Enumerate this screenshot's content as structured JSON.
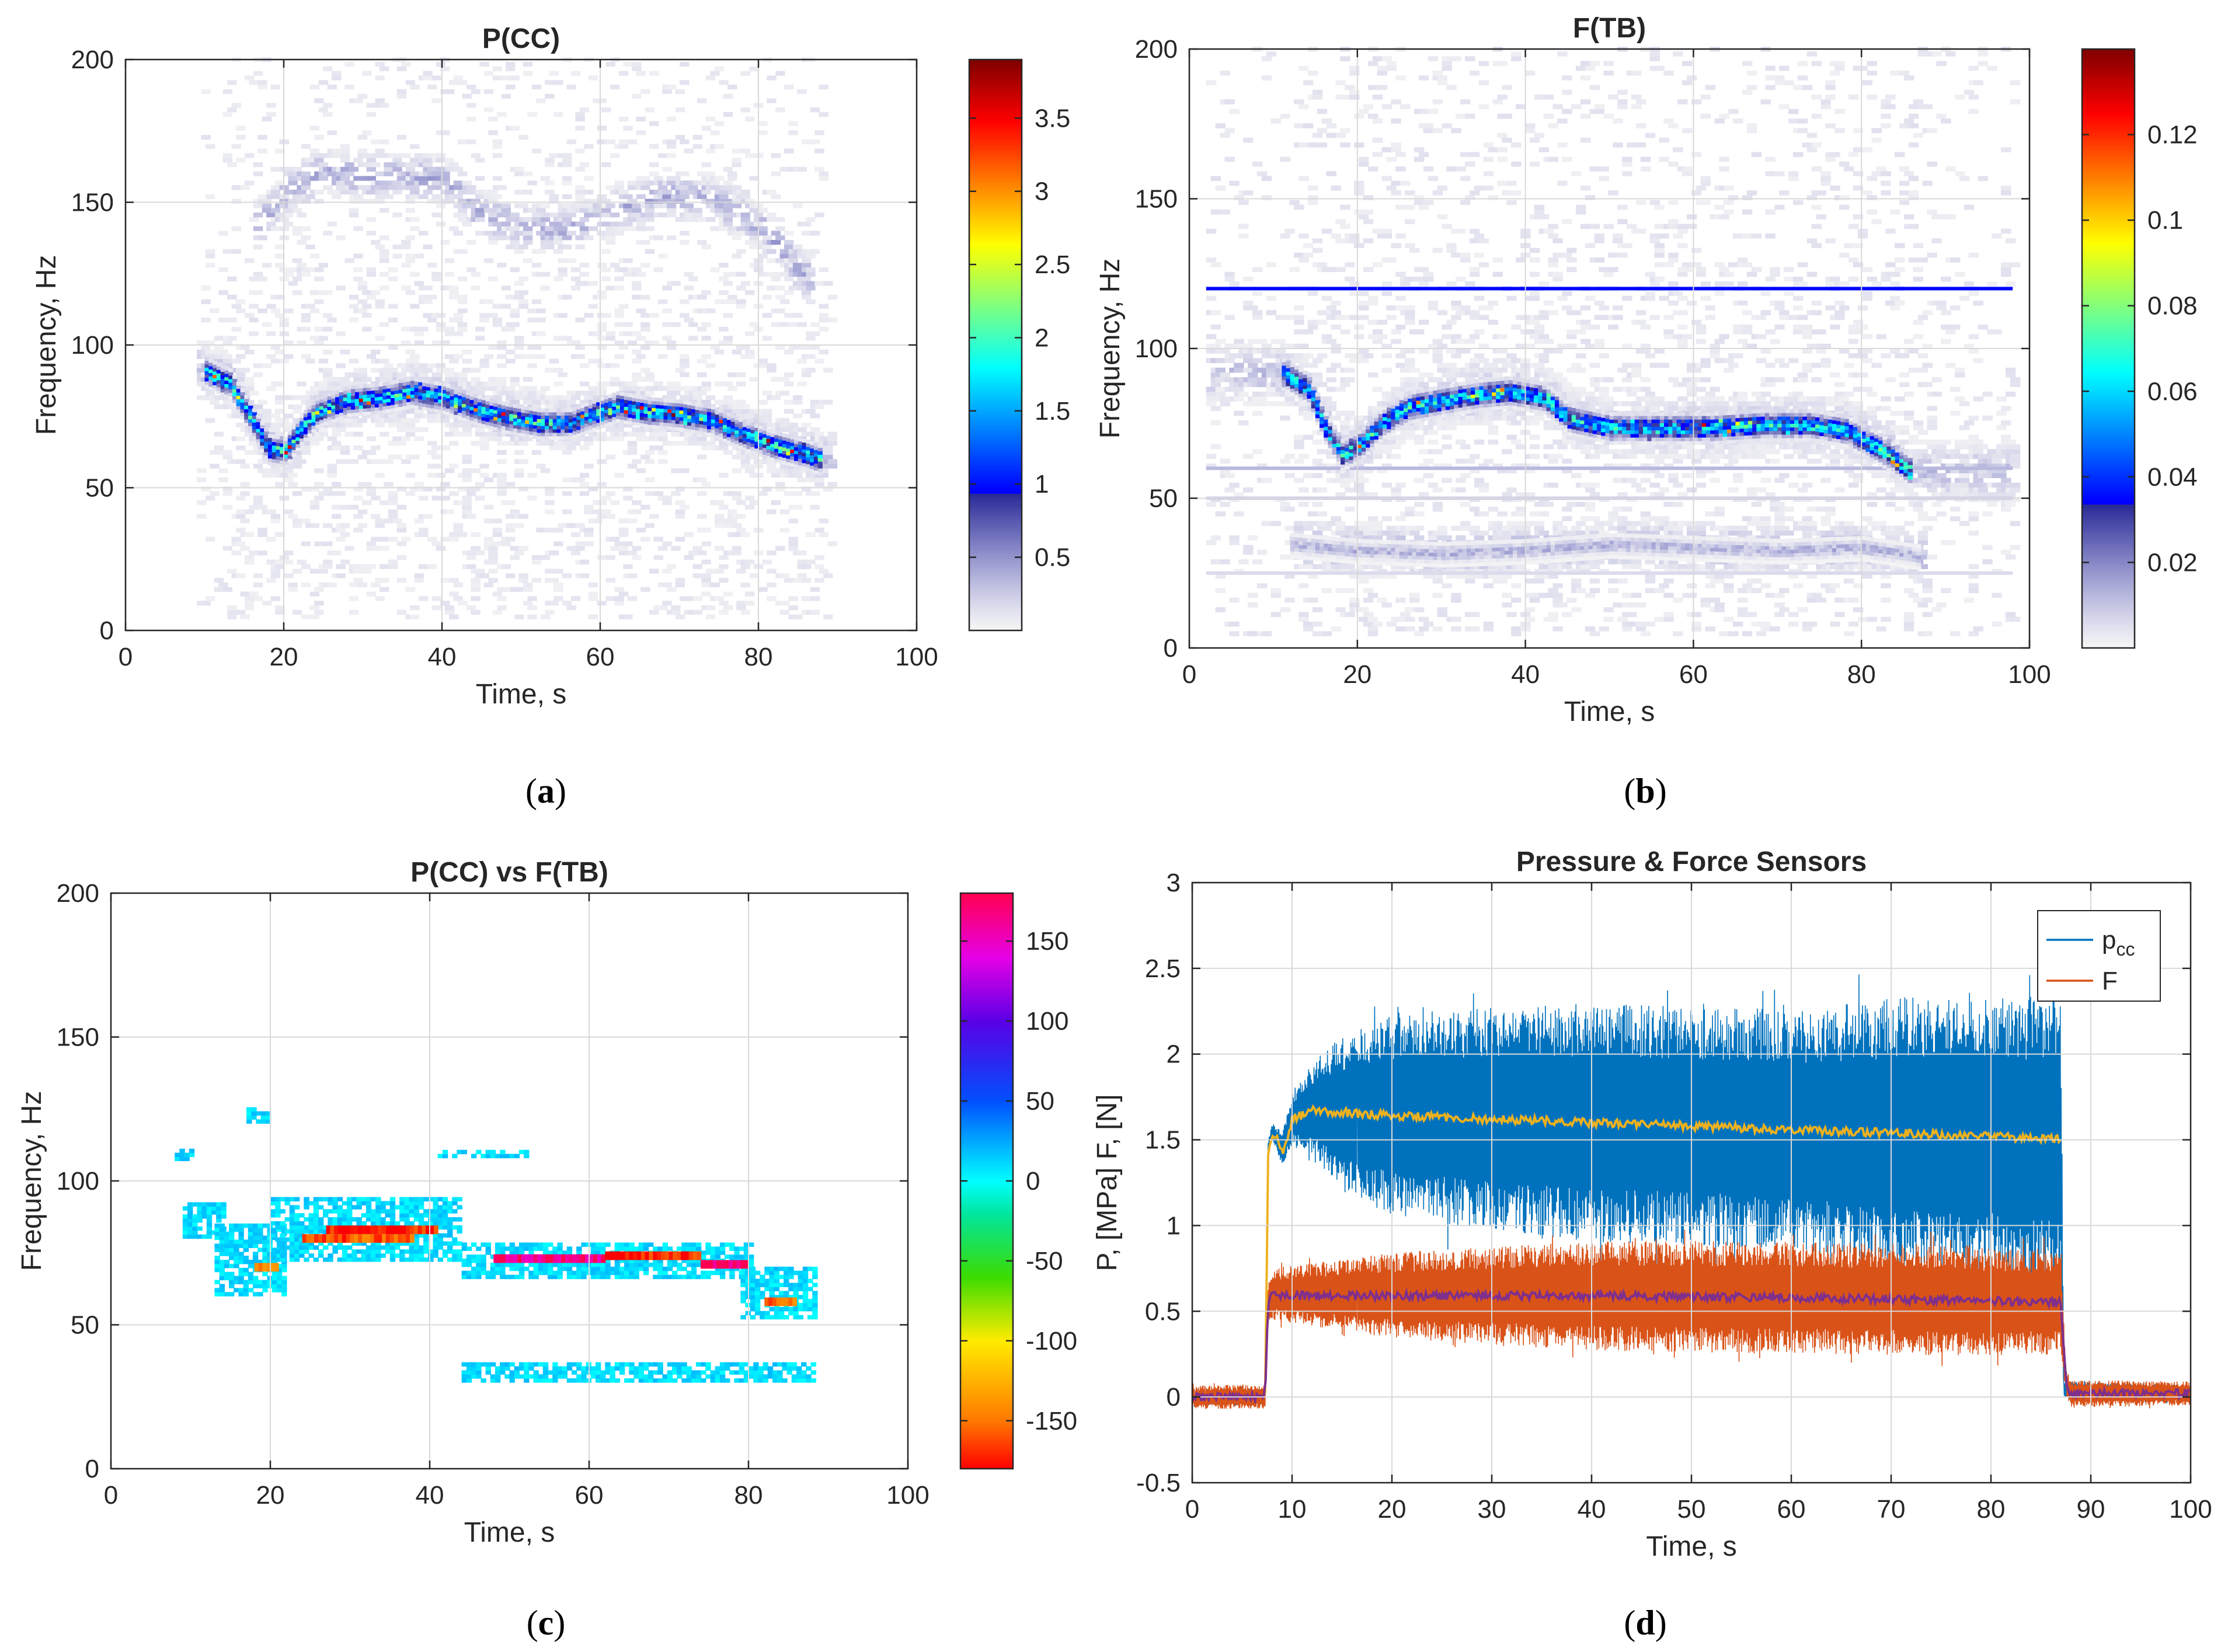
{
  "chart_data": [
    {
      "type": "heatmap",
      "title": "P(CC)",
      "xlabel": "Time, s",
      "ylabel": "Frequency, Hz",
      "xlim": [
        0,
        100
      ],
      "ylim": [
        0,
        200
      ],
      "x_ticks": [
        "0",
        "20",
        "40",
        "60",
        "80",
        "100"
      ],
      "y_ticks": [
        "0",
        "50",
        "100",
        "150",
        "200"
      ],
      "grid": true,
      "colormap": "jet-with-gray-low",
      "colorbar": {
        "range": [
          0,
          3.9
        ],
        "ticks": [
          "0.5",
          "1",
          "1.5",
          "2",
          "2.5",
          "3",
          "3.5"
        ]
      },
      "caption": "(a)",
      "ridges": [
        {
          "label": "main",
          "level": 1.6,
          "points": [
            [
              10,
              90
            ],
            [
              13,
              86
            ],
            [
              16,
              72
            ],
            [
              18,
              63
            ],
            [
              20,
              62
            ],
            [
              22,
              70
            ],
            [
              24,
              76
            ],
            [
              28,
              80
            ],
            [
              32,
              81
            ],
            [
              36,
              83
            ],
            [
              40,
              81
            ],
            [
              44,
              77
            ],
            [
              48,
              74
            ],
            [
              52,
              72
            ],
            [
              56,
              72
            ],
            [
              60,
              76
            ],
            [
              62,
              78
            ],
            [
              66,
              76
            ],
            [
              70,
              75
            ],
            [
              74,
              73
            ],
            [
              78,
              68
            ],
            [
              82,
              64
            ],
            [
              86,
              61
            ],
            [
              88,
              59
            ]
          ]
        },
        {
          "label": "harmonic",
          "level": 0.35,
          "points": [
            [
              16,
              140
            ],
            [
              20,
              152
            ],
            [
              24,
              160
            ],
            [
              30,
              158
            ],
            [
              36,
              158
            ],
            [
              40,
              157
            ],
            [
              44,
              146
            ],
            [
              50,
              140
            ],
            [
              56,
              140
            ],
            [
              62,
              147
            ],
            [
              68,
              152
            ],
            [
              74,
              150
            ],
            [
              80,
              140
            ],
            [
              86,
              122
            ]
          ]
        }
      ]
    },
    {
      "type": "heatmap",
      "title": "F(TB)",
      "xlabel": "Time, s",
      "ylabel": "Frequency, Hz",
      "xlim": [
        0,
        100
      ],
      "ylim": [
        0,
        200
      ],
      "x_ticks": [
        "0",
        "20",
        "40",
        "60",
        "80",
        "100"
      ],
      "y_ticks": [
        "0",
        "50",
        "100",
        "150",
        "200"
      ],
      "grid": true,
      "colormap": "jet-with-gray-low",
      "colorbar": {
        "range": [
          0,
          0.14
        ],
        "ticks": [
          "0.02",
          "0.04",
          "0.06",
          "0.08",
          "0.1",
          "0.12"
        ]
      },
      "caption": "(b)",
      "lines": [
        {
          "frequency": 120,
          "from": 2,
          "to": 98,
          "level": 0.035
        },
        {
          "frequency": 60,
          "from": 2,
          "to": 98,
          "level": 0.012
        },
        {
          "frequency": 50,
          "from": 2,
          "to": 98,
          "level": 0.008
        },
        {
          "frequency": 25,
          "from": 2,
          "to": 98,
          "level": 0.006
        }
      ],
      "ridges": [
        {
          "label": "main",
          "level": 0.055,
          "points": [
            [
              11,
              91
            ],
            [
              14,
              86
            ],
            [
              16,
              73
            ],
            [
              18,
              64
            ],
            [
              20,
              67
            ],
            [
              23,
              75
            ],
            [
              26,
              80
            ],
            [
              30,
              82
            ],
            [
              34,
              84
            ],
            [
              38,
              85
            ],
            [
              42,
              83
            ],
            [
              45,
              76
            ],
            [
              50,
              73
            ],
            [
              56,
              73
            ],
            [
              62,
              73
            ],
            [
              68,
              74
            ],
            [
              74,
              74
            ],
            [
              78,
              72
            ],
            [
              82,
              66
            ],
            [
              86,
              58
            ]
          ]
        },
        {
          "label": "sub",
          "level": 0.012,
          "points": [
            [
              12,
              34
            ],
            [
              20,
              32
            ],
            [
              30,
              31
            ],
            [
              40,
              32
            ],
            [
              50,
              34
            ],
            [
              60,
              33
            ],
            [
              70,
              32
            ],
            [
              80,
              33
            ],
            [
              87,
              30
            ]
          ]
        }
      ]
    },
    {
      "type": "heatmap",
      "title": "P(CC) vs F(TB)",
      "xlabel": "Time, s",
      "ylabel": "Frequency, Hz",
      "xlim": [
        0,
        100
      ],
      "ylim": [
        0,
        200
      ],
      "x_ticks": [
        "0",
        "20",
        "40",
        "60",
        "80",
        "100"
      ],
      "y_ticks": [
        "0",
        "50",
        "100",
        "150",
        "200"
      ],
      "grid": true,
      "colormap": "phase-hsv",
      "colorbar": {
        "range": [
          -180,
          180
        ],
        "ticks": [
          "150",
          "100",
          "50",
          "0",
          "-50",
          "-100",
          "-150"
        ]
      },
      "caption": "(c)",
      "patches": [
        {
          "t0": 9,
          "t1": 14,
          "f0": 80,
          "f1": 92,
          "phase": 10
        },
        {
          "t0": 13,
          "t1": 22,
          "f0": 60,
          "f1": 84,
          "phase": 10
        },
        {
          "t0": 20,
          "t1": 44,
          "f0": 72,
          "f1": 94,
          "phase": 10
        },
        {
          "t0": 44,
          "t1": 80,
          "f0": 66,
          "f1": 78,
          "phase": 10
        },
        {
          "t0": 79,
          "t1": 88,
          "f0": 52,
          "f1": 70,
          "phase": 10
        },
        {
          "t0": 44,
          "t1": 88,
          "f0": 30,
          "f1": 36,
          "phase": 10
        },
        {
          "t0": 17,
          "t1": 20,
          "f0": 120,
          "f1": 125,
          "phase": 10
        },
        {
          "t0": 8,
          "t1": 10,
          "f0": 107,
          "f1": 110,
          "phase": 10
        },
        {
          "t0": 41,
          "t1": 52,
          "f0": 108,
          "f1": 110,
          "phase": 10
        }
      ],
      "hot_segments": [
        {
          "t0": 27,
          "t1": 41,
          "f": 83,
          "phase": -175
        },
        {
          "t0": 24,
          "t1": 38,
          "f": 80,
          "phase": -160
        },
        {
          "t0": 48,
          "t1": 62,
          "f": 73,
          "phase": 170
        },
        {
          "t0": 62,
          "t1": 74,
          "f": 74,
          "phase": -175
        },
        {
          "t0": 74,
          "t1": 80,
          "f": 71,
          "phase": 175
        },
        {
          "t0": 82,
          "t1": 86,
          "f": 58,
          "phase": -150
        },
        {
          "t0": 18,
          "t1": 21,
          "f": 70,
          "phase": -140
        }
      ]
    },
    {
      "type": "line",
      "title": "Pressure & Force Sensors",
      "xlabel": "Time, s",
      "ylabel": "P, [MPa]  F, [N]",
      "xlim": [
        0,
        100
      ],
      "ylim": [
        -0.5,
        3
      ],
      "x_ticks": [
        "0",
        "10",
        "20",
        "30",
        "40",
        "50",
        "60",
        "70",
        "80",
        "90",
        "100"
      ],
      "y_ticks": [
        "-0.5",
        "0",
        "0.5",
        "1",
        "1.5",
        "2",
        "2.5",
        "3"
      ],
      "grid": true,
      "legend": "top-right",
      "caption": "(d)",
      "series": [
        {
          "name": "p",
          "name_sub": "cc",
          "color": "#0072BD",
          "mean": [
            [
              0,
              0.0
            ],
            [
              7.3,
              0.0
            ],
            [
              7.6,
              1.45
            ],
            [
              8,
              1.55
            ],
            [
              9,
              1.45
            ],
            [
              10,
              1.62
            ],
            [
              12,
              1.67
            ],
            [
              20,
              1.64
            ],
            [
              40,
              1.6
            ],
            [
              60,
              1.56
            ],
            [
              80,
              1.52
            ],
            [
              87,
              1.5
            ],
            [
              87.3,
              0.05
            ],
            [
              88,
              0.04
            ],
            [
              100,
              0.02
            ]
          ],
          "half_width": [
            [
              0,
              0.05
            ],
            [
              7.3,
              0.05
            ],
            [
              8,
              0.05
            ],
            [
              10,
              0.15
            ],
            [
              14,
              0.4
            ],
            [
              20,
              0.6
            ],
            [
              40,
              0.7
            ],
            [
              60,
              0.7
            ],
            [
              72,
              0.8
            ],
            [
              80,
              0.8
            ],
            [
              87,
              0.85
            ],
            [
              87.3,
              0.05
            ],
            [
              100,
              0.05
            ]
          ]
        },
        {
          "name": "F",
          "color": "#D95319",
          "mean": [
            [
              0,
              0.0
            ],
            [
              7.3,
              0.0
            ],
            [
              7.6,
              0.55
            ],
            [
              8,
              0.6
            ],
            [
              20,
              0.59
            ],
            [
              40,
              0.59
            ],
            [
              60,
              0.58
            ],
            [
              80,
              0.56
            ],
            [
              87,
              0.55
            ],
            [
              87.5,
              0.1
            ],
            [
              88,
              0.02
            ],
            [
              100,
              0.02
            ]
          ],
          "half_width": [
            [
              0,
              0.07
            ],
            [
              7.3,
              0.07
            ],
            [
              8,
              0.15
            ],
            [
              20,
              0.25
            ],
            [
              40,
              0.32
            ],
            [
              60,
              0.33
            ],
            [
              80,
              0.32
            ],
            [
              87,
              0.3
            ],
            [
              87.5,
              0.08
            ],
            [
              100,
              0.07
            ]
          ]
        },
        {
          "name": "",
          "color": "#EDB120",
          "role": "smoothed p",
          "points": [
            [
              7.3,
              0.0
            ],
            [
              7.6,
              1.4
            ],
            [
              8,
              1.53
            ],
            [
              8.5,
              1.5
            ],
            [
              9,
              1.42
            ],
            [
              9.5,
              1.48
            ],
            [
              10,
              1.62
            ],
            [
              12,
              1.67
            ],
            [
              15,
              1.66
            ],
            [
              20,
              1.64
            ],
            [
              30,
              1.62
            ],
            [
              40,
              1.6
            ],
            [
              50,
              1.58
            ],
            [
              60,
              1.56
            ],
            [
              70,
              1.54
            ],
            [
              80,
              1.52
            ],
            [
              87,
              1.5
            ]
          ]
        },
        {
          "name": "",
          "color": "#7E2F8E",
          "role": "smoothed F",
          "points": [
            [
              0,
              0.0
            ],
            [
              7.3,
              0.0
            ],
            [
              7.6,
              0.55
            ],
            [
              8,
              0.6
            ],
            [
              10,
              0.59
            ],
            [
              20,
              0.59
            ],
            [
              40,
              0.59
            ],
            [
              60,
              0.58
            ],
            [
              80,
              0.56
            ],
            [
              87,
              0.55
            ],
            [
              87.5,
              0.1
            ],
            [
              88,
              0.02
            ],
            [
              100,
              0.02
            ]
          ]
        }
      ]
    }
  ]
}
